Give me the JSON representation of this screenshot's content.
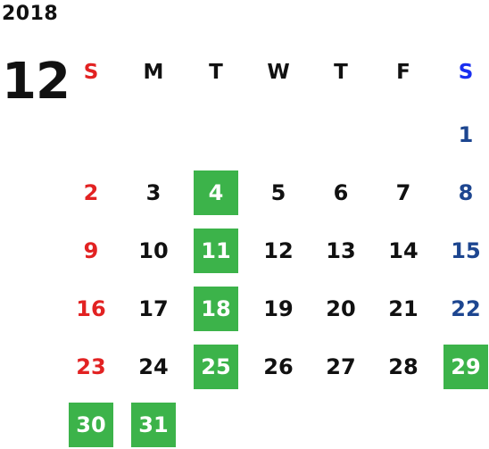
{
  "calendar": {
    "year": "2018",
    "month": "12",
    "weekdays": [
      "S",
      "M",
      "T",
      "W",
      "T",
      "F",
      "S"
    ],
    "highlight_color": "#3cb34a",
    "weeks": [
      [
        "",
        "",
        "",
        "",
        "",
        "",
        "1"
      ],
      [
        "2",
        "3",
        "4",
        "5",
        "6",
        "7",
        "8"
      ],
      [
        "9",
        "10",
        "11",
        "12",
        "13",
        "14",
        "15"
      ],
      [
        "16",
        "17",
        "18",
        "19",
        "20",
        "21",
        "22"
      ],
      [
        "23",
        "24",
        "25",
        "26",
        "27",
        "28",
        "29"
      ],
      [
        "30",
        "31",
        "",
        "",
        "",
        "",
        ""
      ]
    ],
    "highlighted_days": [
      "4",
      "11",
      "18",
      "25",
      "29",
      "30",
      "31"
    ]
  }
}
